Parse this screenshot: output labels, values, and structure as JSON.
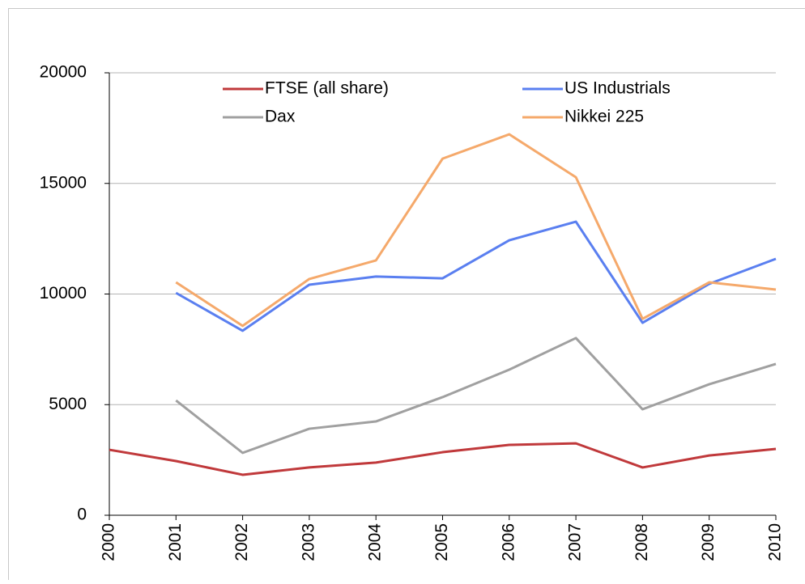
{
  "chart_data": {
    "type": "line",
    "x": [
      2000,
      2001,
      2002,
      2003,
      2004,
      2005,
      2006,
      2007,
      2008,
      2009,
      2010
    ],
    "xlim": [
      2000,
      2010
    ],
    "xticks": [
      2000,
      2001,
      2002,
      2003,
      2004,
      2005,
      2006,
      2007,
      2008,
      2009,
      2010
    ],
    "ylim": [
      0,
      20000
    ],
    "yticks": [
      0,
      5000,
      10000,
      15000,
      20000
    ],
    "grid": true,
    "legend": "top",
    "series": [
      {
        "name": "FTSE (all share)",
        "color": "#c0393b",
        "values": [
          2960,
          2450,
          1830,
          2160,
          2380,
          2850,
          3180,
          3250,
          2160,
          2700,
          3000
        ]
      },
      {
        "name": "US Industrials",
        "color": "#5a7ff0",
        "values": [
          null,
          10050,
          8340,
          10420,
          10790,
          10710,
          12430,
          13270,
          8700,
          10460,
          11590
        ]
      },
      {
        "name": "Dax",
        "color": "#a0a0a0",
        "values": [
          null,
          5190,
          2820,
          3910,
          4240,
          5340,
          6580,
          8010,
          4790,
          5920,
          6840
        ]
      },
      {
        "name": "Nikkei 225",
        "color": "#f5a96b",
        "values": [
          null,
          10530,
          8560,
          10680,
          11520,
          16120,
          17220,
          15280,
          8880,
          10530,
          10200
        ]
      }
    ]
  }
}
